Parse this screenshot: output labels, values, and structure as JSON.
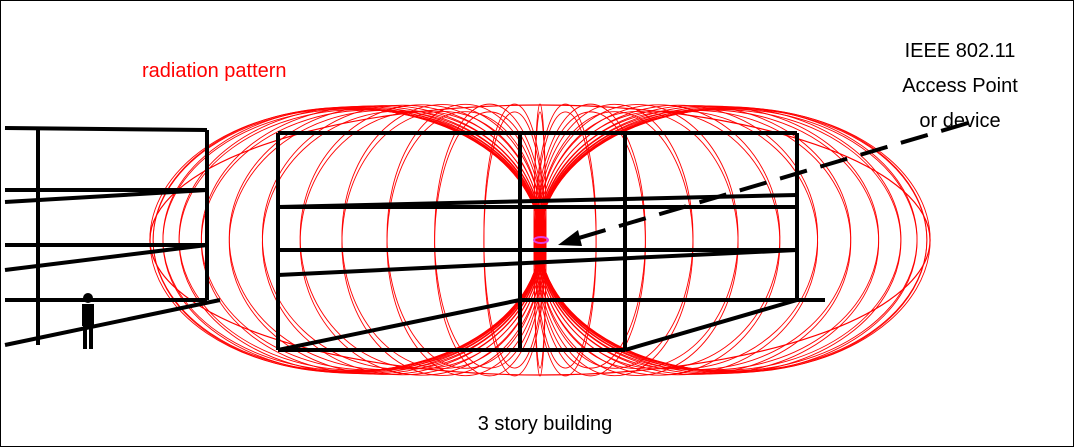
{
  "labels": {
    "pattern": "radiation pattern",
    "device": [
      "IEEE 802.11",
      "Access Point",
      "or device"
    ],
    "building": "3 story building"
  }
}
